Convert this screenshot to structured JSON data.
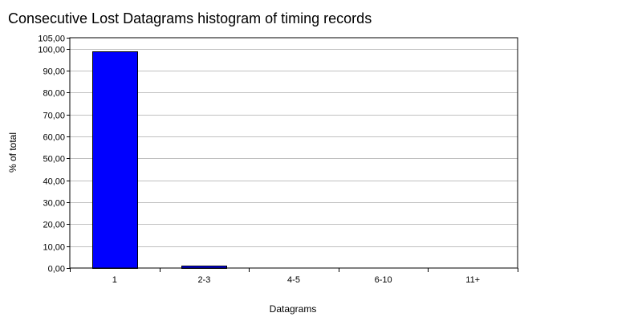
{
  "chart_data": {
    "type": "bar",
    "title": "Consecutive Lost Datagrams histogram of timing records",
    "xlabel": "Datagrams",
    "ylabel": "% of total",
    "categories": [
      "1",
      "2-3",
      "4-5",
      "6-10",
      "11+"
    ],
    "values": [
      98.9,
      1.1,
      0,
      0,
      0
    ],
    "ylim": [
      0,
      105
    ],
    "yticks": [
      "0,00",
      "10,00",
      "20,00",
      "30,00",
      "40,00",
      "50,00",
      "60,00",
      "70,00",
      "80,00",
      "90,00",
      "100,00",
      "105,00"
    ],
    "ytick_values": [
      0,
      10,
      20,
      30,
      40,
      50,
      60,
      70,
      80,
      90,
      100,
      105
    ],
    "grid": true,
    "legend": "none",
    "bar_color": "#0000ff",
    "bar_edge_color": "#000000",
    "grid_color": "#c0c0c0"
  }
}
